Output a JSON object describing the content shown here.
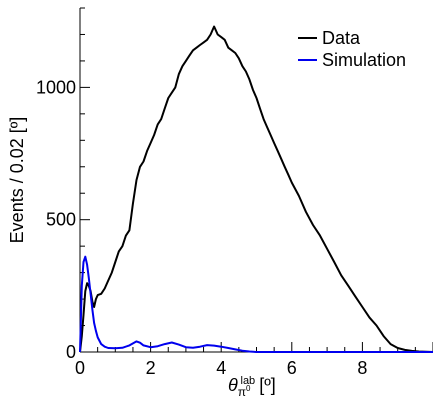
{
  "chart_data": {
    "type": "line",
    "ylabel": "Events / 0.02 [º]",
    "xlabel_symbol": "θ",
    "xlabel_sub": "π",
    "xlabel_sub_sup": "0",
    "xlabel_sup": "lab",
    "xlabel_unit": "[º]",
    "xlim": [
      0,
      10
    ],
    "ylim": [
      0,
      1300
    ],
    "x_ticks": [
      0,
      2,
      4,
      6,
      8
    ],
    "y_ticks": [
      0,
      500,
      1000
    ],
    "x_tick_labels": [
      "0",
      "2",
      "4",
      "6",
      "8"
    ],
    "y_tick_labels": [
      "0",
      "500",
      "1000"
    ],
    "legend_position": "top-right",
    "grid": false,
    "series": [
      {
        "name": "Data",
        "color": "#000000",
        "points": [
          [
            0.0,
            0
          ],
          [
            0.05,
            60
          ],
          [
            0.1,
            140
          ],
          [
            0.15,
            230
          ],
          [
            0.2,
            260
          ],
          [
            0.25,
            250
          ],
          [
            0.3,
            230
          ],
          [
            0.35,
            190
          ],
          [
            0.4,
            170
          ],
          [
            0.45,
            200
          ],
          [
            0.5,
            215
          ],
          [
            0.6,
            220
          ],
          [
            0.7,
            240
          ],
          [
            0.8,
            270
          ],
          [
            0.9,
            300
          ],
          [
            1.0,
            340
          ],
          [
            1.1,
            380
          ],
          [
            1.2,
            400
          ],
          [
            1.3,
            440
          ],
          [
            1.4,
            460
          ],
          [
            1.5,
            560
          ],
          [
            1.6,
            650
          ],
          [
            1.7,
            700
          ],
          [
            1.8,
            720
          ],
          [
            1.9,
            760
          ],
          [
            2.0,
            790
          ],
          [
            2.1,
            820
          ],
          [
            2.2,
            860
          ],
          [
            2.3,
            880
          ],
          [
            2.4,
            920
          ],
          [
            2.5,
            960
          ],
          [
            2.6,
            980
          ],
          [
            2.7,
            1000
          ],
          [
            2.8,
            1050
          ],
          [
            2.9,
            1080
          ],
          [
            3.0,
            1100
          ],
          [
            3.1,
            1120
          ],
          [
            3.2,
            1140
          ],
          [
            3.3,
            1150
          ],
          [
            3.4,
            1160
          ],
          [
            3.5,
            1170
          ],
          [
            3.6,
            1180
          ],
          [
            3.7,
            1200
          ],
          [
            3.8,
            1230
          ],
          [
            3.9,
            1200
          ],
          [
            4.0,
            1190
          ],
          [
            4.1,
            1180
          ],
          [
            4.2,
            1150
          ],
          [
            4.3,
            1140
          ],
          [
            4.4,
            1130
          ],
          [
            4.5,
            1110
          ],
          [
            4.6,
            1080
          ],
          [
            4.7,
            1060
          ],
          [
            4.8,
            1030
          ],
          [
            4.9,
            990
          ],
          [
            5.0,
            960
          ],
          [
            5.1,
            920
          ],
          [
            5.2,
            880
          ],
          [
            5.3,
            850
          ],
          [
            5.4,
            820
          ],
          [
            5.5,
            790
          ],
          [
            5.6,
            760
          ],
          [
            5.7,
            730
          ],
          [
            5.8,
            700
          ],
          [
            5.9,
            670
          ],
          [
            6.0,
            640
          ],
          [
            6.2,
            590
          ],
          [
            6.4,
            530
          ],
          [
            6.6,
            480
          ],
          [
            6.8,
            440
          ],
          [
            7.0,
            390
          ],
          [
            7.2,
            340
          ],
          [
            7.4,
            290
          ],
          [
            7.6,
            250
          ],
          [
            7.8,
            210
          ],
          [
            8.0,
            170
          ],
          [
            8.2,
            130
          ],
          [
            8.4,
            100
          ],
          [
            8.6,
            60
          ],
          [
            8.8,
            30
          ],
          [
            9.0,
            15
          ],
          [
            9.2,
            8
          ],
          [
            9.4,
            4
          ],
          [
            9.6,
            2
          ],
          [
            9.8,
            1
          ],
          [
            10.0,
            0
          ]
        ]
      },
      {
        "name": "Simulation",
        "color": "#0000ee",
        "points": [
          [
            0.0,
            0
          ],
          [
            0.05,
            250
          ],
          [
            0.1,
            340
          ],
          [
            0.15,
            360
          ],
          [
            0.2,
            330
          ],
          [
            0.25,
            280
          ],
          [
            0.3,
            220
          ],
          [
            0.35,
            160
          ],
          [
            0.4,
            110
          ],
          [
            0.45,
            80
          ],
          [
            0.5,
            55
          ],
          [
            0.6,
            30
          ],
          [
            0.7,
            20
          ],
          [
            0.8,
            15
          ],
          [
            1.0,
            14
          ],
          [
            1.2,
            16
          ],
          [
            1.4,
            25
          ],
          [
            1.6,
            40
          ],
          [
            1.7,
            35
          ],
          [
            1.8,
            25
          ],
          [
            2.0,
            18
          ],
          [
            2.2,
            22
          ],
          [
            2.4,
            30
          ],
          [
            2.6,
            36
          ],
          [
            2.8,
            28
          ],
          [
            3.0,
            18
          ],
          [
            3.2,
            16
          ],
          [
            3.4,
            20
          ],
          [
            3.6,
            26
          ],
          [
            3.8,
            24
          ],
          [
            4.0,
            20
          ],
          [
            4.2,
            15
          ],
          [
            4.4,
            10
          ],
          [
            4.6,
            5
          ],
          [
            4.8,
            2
          ],
          [
            5.0,
            0
          ],
          [
            6.0,
            0
          ],
          [
            8.0,
            0
          ],
          [
            10.0,
            0
          ]
        ]
      }
    ]
  }
}
